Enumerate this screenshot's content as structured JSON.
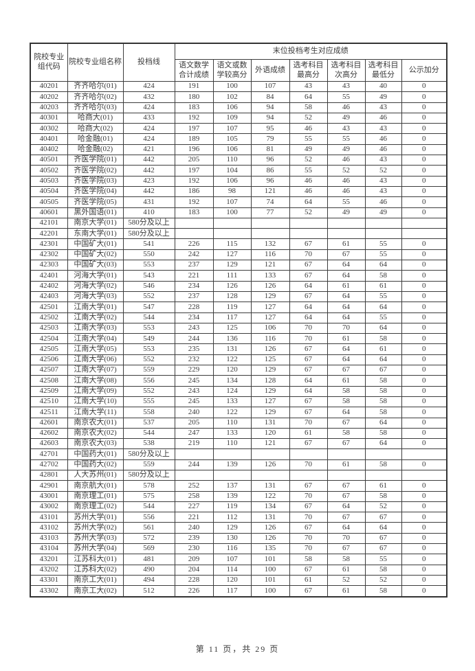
{
  "page": {
    "footer_text": "第 11 页，共 29 页",
    "ink_color": "#3a3a3a",
    "border_color": "#3c3c3c",
    "background_color": "#ffffff"
  },
  "table": {
    "header": {
      "col_code": "院校专业组代码",
      "col_name": "院校专业组名称",
      "col_line": "投档线",
      "group": "末位投档考生对应成绩",
      "sub": [
        "语文数学合计成绩",
        "语文或数学较高分",
        "外语成绩",
        "选考科目最高分",
        "选考科目次高分",
        "选考科目最低分",
        "公示加分"
      ]
    },
    "col_keys": [
      "code",
      "name",
      "line",
      "chn-math-total",
      "chn-or-math-higher",
      "foreign-lang",
      "elective-highest",
      "elective-second-highest",
      "elective-lowest",
      "public-bonus"
    ],
    "rows": [
      [
        "40201",
        "齐齐哈尔(01)",
        "424",
        "191",
        "100",
        "107",
        "43",
        "43",
        "40",
        "0"
      ],
      [
        "40202",
        "齐齐哈尔(02)",
        "432",
        "180",
        "102",
        "84",
        "64",
        "55",
        "49",
        "0"
      ],
      [
        "40203",
        "齐齐哈尔(03)",
        "424",
        "183",
        "106",
        "94",
        "58",
        "46",
        "43",
        "0"
      ],
      [
        "40301",
        "哈商大(01)",
        "433",
        "192",
        "109",
        "94",
        "52",
        "49",
        "46",
        "0"
      ],
      [
        "40302",
        "哈商大(02)",
        "424",
        "197",
        "107",
        "95",
        "46",
        "43",
        "43",
        "0"
      ],
      [
        "40401",
        "哈金融(01)",
        "424",
        "189",
        "105",
        "79",
        "55",
        "55",
        "46",
        "0"
      ],
      [
        "40402",
        "哈金融(02)",
        "421",
        "196",
        "106",
        "81",
        "49",
        "49",
        "46",
        "0"
      ],
      [
        "40501",
        "齐医学院(01)",
        "442",
        "205",
        "110",
        "96",
        "52",
        "46",
        "43",
        "0"
      ],
      [
        "40502",
        "齐医学院(02)",
        "442",
        "197",
        "104",
        "86",
        "55",
        "52",
        "52",
        "0"
      ],
      [
        "40503",
        "齐医学院(03)",
        "423",
        "192",
        "106",
        "96",
        "46",
        "46",
        "43",
        "0"
      ],
      [
        "40504",
        "齐医学院(04)",
        "442",
        "186",
        "98",
        "121",
        "46",
        "46",
        "43",
        "0"
      ],
      [
        "40505",
        "齐医学院(05)",
        "431",
        "192",
        "107",
        "74",
        "64",
        "55",
        "46",
        "0"
      ],
      [
        "40601",
        "黑外国语(01)",
        "410",
        "183",
        "100",
        "77",
        "52",
        "49",
        "49",
        "0"
      ],
      [
        "42101",
        "南京大学(01)",
        "580分及以上",
        "",
        "",
        "",
        "",
        "",
        "",
        ""
      ],
      [
        "42201",
        "东南大学(01)",
        "580分及以上",
        "",
        "",
        "",
        "",
        "",
        "",
        ""
      ],
      [
        "42301",
        "中国矿大(01)",
        "541",
        "226",
        "115",
        "132",
        "67",
        "61",
        "55",
        "0"
      ],
      [
        "42302",
        "中国矿大(02)",
        "550",
        "242",
        "127",
        "116",
        "70",
        "67",
        "55",
        "0"
      ],
      [
        "42303",
        "中国矿大(03)",
        "553",
        "237",
        "129",
        "121",
        "67",
        "64",
        "64",
        "0"
      ],
      [
        "42401",
        "河海大学(01)",
        "543",
        "221",
        "111",
        "133",
        "67",
        "64",
        "58",
        "0"
      ],
      [
        "42402",
        "河海大学(02)",
        "546",
        "234",
        "126",
        "126",
        "64",
        "61",
        "61",
        "0"
      ],
      [
        "42403",
        "河海大学(03)",
        "552",
        "237",
        "128",
        "129",
        "67",
        "64",
        "55",
        "0"
      ],
      [
        "42501",
        "江南大学(01)",
        "547",
        "228",
        "119",
        "127",
        "64",
        "64",
        "64",
        "0"
      ],
      [
        "42502",
        "江南大学(02)",
        "544",
        "234",
        "117",
        "127",
        "64",
        "64",
        "55",
        "0"
      ],
      [
        "42503",
        "江南大学(03)",
        "553",
        "243",
        "125",
        "106",
        "70",
        "70",
        "64",
        "0"
      ],
      [
        "42504",
        "江南大学(04)",
        "549",
        "244",
        "136",
        "116",
        "70",
        "61",
        "58",
        "0"
      ],
      [
        "42505",
        "江南大学(05)",
        "553",
        "235",
        "131",
        "126",
        "67",
        "64",
        "61",
        "0"
      ],
      [
        "42506",
        "江南大学(06)",
        "552",
        "232",
        "122",
        "125",
        "67",
        "64",
        "64",
        "0"
      ],
      [
        "42507",
        "江南大学(07)",
        "559",
        "229",
        "120",
        "129",
        "67",
        "67",
        "67",
        "0"
      ],
      [
        "42508",
        "江南大学(08)",
        "556",
        "245",
        "134",
        "128",
        "64",
        "61",
        "58",
        "0"
      ],
      [
        "42509",
        "江南大学(09)",
        "552",
        "243",
        "124",
        "129",
        "64",
        "58",
        "58",
        "0"
      ],
      [
        "42510",
        "江南大学(10)",
        "555",
        "245",
        "133",
        "127",
        "67",
        "58",
        "58",
        "0"
      ],
      [
        "42511",
        "江南大学(11)",
        "558",
        "240",
        "122",
        "129",
        "67",
        "64",
        "58",
        "0"
      ],
      [
        "42601",
        "南京农大(01)",
        "537",
        "205",
        "110",
        "131",
        "70",
        "67",
        "64",
        "0"
      ],
      [
        "42602",
        "南京农大(02)",
        "544",
        "247",
        "133",
        "120",
        "61",
        "58",
        "58",
        "0"
      ],
      [
        "42603",
        "南京农大(03)",
        "538",
        "219",
        "110",
        "121",
        "67",
        "67",
        "64",
        "0"
      ],
      [
        "42701",
        "中国药大(01)",
        "580分及以上",
        "",
        "",
        "",
        "",
        "",
        "",
        ""
      ],
      [
        "42702",
        "中国药大(02)",
        "559",
        "244",
        "139",
        "126",
        "70",
        "61",
        "58",
        "0"
      ],
      [
        "42801",
        "人大苏州(01)",
        "580分及以上",
        "",
        "",
        "",
        "",
        "",
        "",
        ""
      ],
      [
        "42901",
        "南京航大(01)",
        "578",
        "252",
        "137",
        "131",
        "67",
        "67",
        "61",
        "0"
      ],
      [
        "43001",
        "南京理工(01)",
        "575",
        "258",
        "139",
        "122",
        "70",
        "67",
        "58",
        "0"
      ],
      [
        "43002",
        "南京理工(02)",
        "544",
        "227",
        "119",
        "134",
        "67",
        "64",
        "52",
        "0"
      ],
      [
        "43101",
        "苏州大学(01)",
        "556",
        "221",
        "112",
        "131",
        "70",
        "67",
        "67",
        "0"
      ],
      [
        "43102",
        "苏州大学(02)",
        "561",
        "240",
        "129",
        "126",
        "67",
        "64",
        "64",
        "0"
      ],
      [
        "43103",
        "苏州大学(03)",
        "572",
        "239",
        "130",
        "126",
        "70",
        "70",
        "67",
        "0"
      ],
      [
        "43104",
        "苏州大学(04)",
        "569",
        "230",
        "116",
        "135",
        "70",
        "67",
        "67",
        "0"
      ],
      [
        "43201",
        "江苏科大(01)",
        "481",
        "209",
        "107",
        "101",
        "58",
        "58",
        "55",
        "0"
      ],
      [
        "43202",
        "江苏科大(02)",
        "490",
        "204",
        "114",
        "100",
        "67",
        "61",
        "58",
        "0"
      ],
      [
        "43301",
        "南京工大(01)",
        "494",
        "228",
        "120",
        "101",
        "61",
        "52",
        "52",
        "0"
      ],
      [
        "43302",
        "南京工大(02)",
        "512",
        "226",
        "117",
        "100",
        "67",
        "61",
        "58",
        "0"
      ]
    ]
  }
}
